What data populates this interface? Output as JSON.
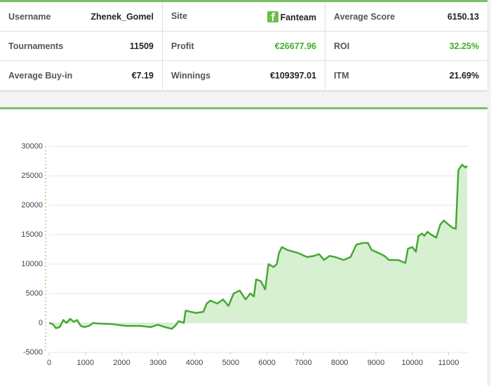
{
  "table": {
    "rows": [
      [
        {
          "label": "Username",
          "value": "Zhenek_Gomel"
        },
        {
          "label": "Site",
          "value": "Fanteam"
        },
        {
          "label": "Average Score",
          "value": "6150.13"
        }
      ],
      [
        {
          "label": "Tournaments",
          "value": "11509"
        },
        {
          "label": "Profit",
          "value": "€26677.96"
        },
        {
          "label": "ROI",
          "value": "32.25%"
        }
      ],
      [
        {
          "label": "Average Buy-in",
          "value": "€7.19"
        },
        {
          "label": "Winnings",
          "value": "€109397.01"
        },
        {
          "label": "ITM",
          "value": "21.69%"
        }
      ]
    ]
  },
  "chart_data": {
    "type": "area",
    "color": "#45a834",
    "fill": "#d8f0d2",
    "grid": true,
    "xlim": [
      0,
      11550
    ],
    "ylim": [
      -5000,
      30000
    ],
    "xticks": [
      0,
      1000,
      2000,
      3000,
      4000,
      5000,
      6000,
      7000,
      8000,
      9000,
      10000,
      11000
    ],
    "yticks": [
      -5000,
      0,
      5000,
      10000,
      15000,
      20000,
      25000,
      30000
    ],
    "x": [
      0,
      100,
      190,
      290,
      390,
      480,
      580,
      680,
      770,
      870,
      970,
      1100,
      1220,
      1350,
      1740,
      2120,
      2510,
      2800,
      2990,
      3190,
      3380,
      3470,
      3570,
      3710,
      3760,
      3900,
      4050,
      4250,
      4340,
      4440,
      4630,
      4790,
      4940,
      5080,
      5250,
      5410,
      5540,
      5640,
      5700,
      5830,
      5950,
      6040,
      6180,
      6270,
      6330,
      6410,
      6560,
      6850,
      7100,
      7300,
      7430,
      7570,
      7720,
      7880,
      8110,
      8300,
      8460,
      8650,
      8780,
      8880,
      9070,
      9230,
      9360,
      9610,
      9810,
      9880,
      10000,
      10100,
      10170,
      10270,
      10330,
      10420,
      10520,
      10660,
      10770,
      10870,
      11000,
      11100,
      11200,
      11270,
      11370,
      11470,
      11509
    ],
    "values": [
      0,
      -200,
      -900,
      -700,
      500,
      0,
      700,
      200,
      500,
      -500,
      -700,
      -500,
      0,
      -100,
      -200,
      -500,
      -500,
      -700,
      -300,
      -700,
      -1000,
      -500,
      300,
      0,
      2100,
      1900,
      1700,
      1900,
      3300,
      3800,
      3300,
      4000,
      2900,
      5000,
      5500,
      4000,
      5000,
      4500,
      7400,
      7100,
      5700,
      10000,
      9500,
      10000,
      11900,
      12900,
      12400,
      11900,
      11200,
      11400,
      11700,
      10700,
      11400,
      11200,
      10700,
      11200,
      13300,
      13600,
      13600,
      12400,
      11900,
      11400,
      10700,
      10700,
      10200,
      12600,
      12900,
      12100,
      14800,
      15200,
      14800,
      15500,
      15000,
      14500,
      16700,
      17400,
      16700,
      16200,
      16000,
      26000,
      26900,
      26400,
      26700
    ]
  }
}
